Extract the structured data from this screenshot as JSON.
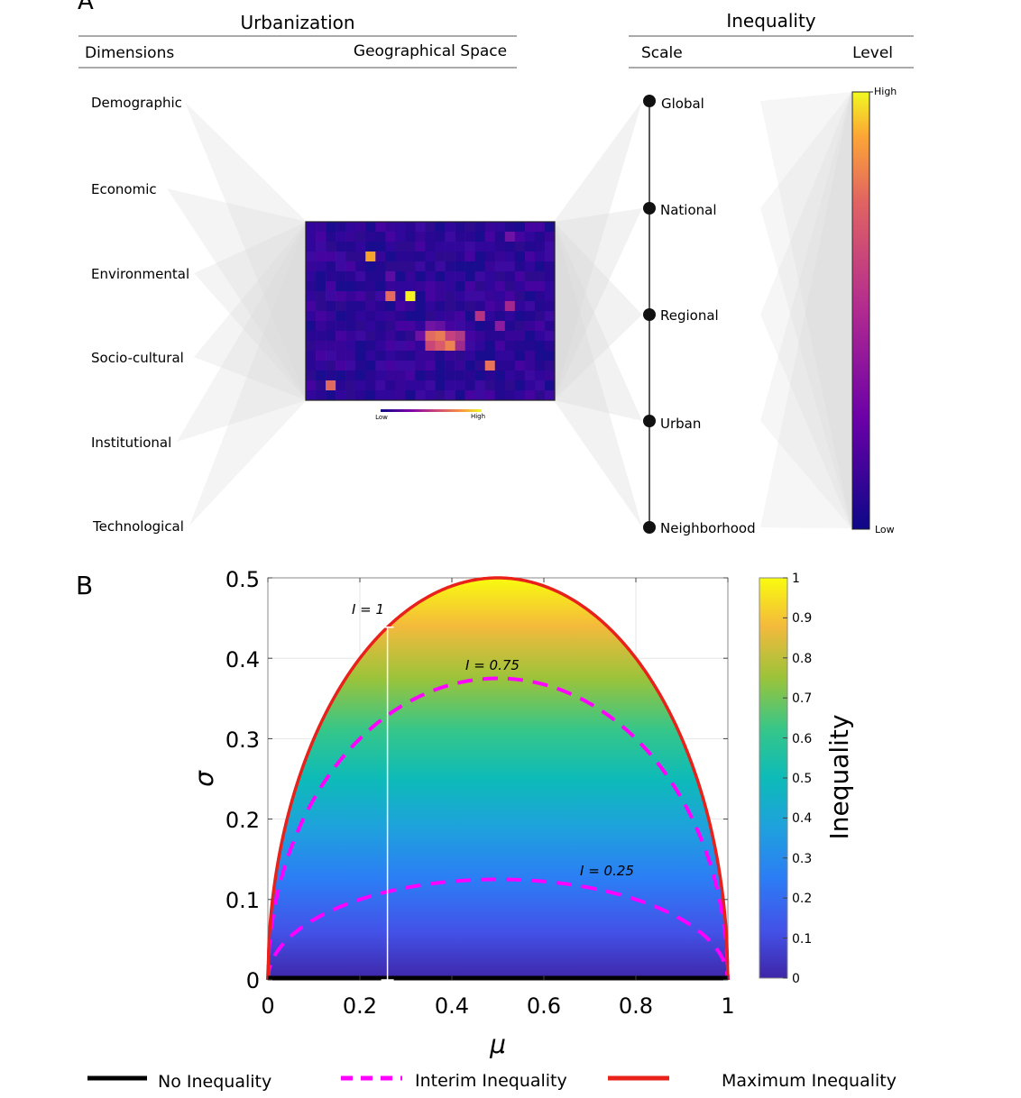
{
  "panel_a": {
    "label": "A",
    "urbanization_header": "Urbanization",
    "inequality_header": "Inequality",
    "dimensions_header": "Dimensions",
    "geo_header": "Geographical Space",
    "scale_header": "Scale",
    "level_header": "Level",
    "dimensions": [
      "Demographic",
      "Economic",
      "Environmental",
      "Socio-cultural",
      "Institutional",
      "Technological"
    ],
    "scales": [
      "Global",
      "National",
      "Regional",
      "Urban",
      "Neighborhood"
    ],
    "map_legend_low": "Low",
    "map_legend_high": "High",
    "level_high": "High",
    "level_low": "Low"
  },
  "panel_b": {
    "label": "B",
    "xlabel": "μ",
    "ylabel": "σ",
    "colorbar_label": "Inequality",
    "x_ticks": [
      "0",
      "0.2",
      "0.4",
      "0.6",
      "0.8",
      "1"
    ],
    "y_ticks": [
      "0",
      "0.1",
      "0.2",
      "0.3",
      "0.4",
      "0.5"
    ],
    "cb_ticks": [
      "0",
      "0.1",
      "0.2",
      "0.3",
      "0.4",
      "0.5",
      "0.6",
      "0.7",
      "0.8",
      "0.9",
      "1"
    ],
    "annotation_i1": "I = 1",
    "annotation_i075": "I = 0.75",
    "annotation_i025": "I = 0.25",
    "legend": {
      "no_inequality": "No Inequality",
      "interim": "Interim Inequality",
      "maximum": "Maximum Inequality"
    }
  },
  "colors": {
    "max_curve": "#e8211a",
    "interim_curve": "#ff00ff",
    "no_inequality": "#000000",
    "connector": "#d8d8d8"
  },
  "chart_data": {
    "type": "heatmap",
    "x_range": [
      0,
      1
    ],
    "y_range": [
      0,
      0.5
    ],
    "value_range": [
      0,
      1
    ],
    "curves": [
      {
        "name": "Maximum Inequality",
        "I": 1,
        "formula": "sigma = sqrt(mu*(1-mu))"
      },
      {
        "name": "Interim Inequality",
        "I": 0.75,
        "formula": "sigma = 0.75*sqrt(mu*(1-mu))"
      },
      {
        "name": "Interim Inequality",
        "I": 0.25,
        "formula": "sigma = 0.25*sqrt(mu*(1-mu))"
      },
      {
        "name": "No Inequality",
        "I": 0,
        "formula": "sigma = 0"
      }
    ],
    "marker_mu": 0.26
  }
}
